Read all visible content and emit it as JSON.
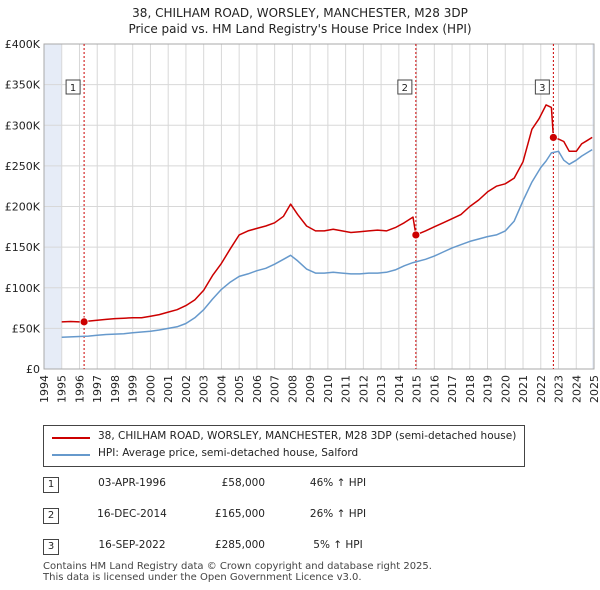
{
  "title_line1": "38, CHILHAM ROAD, WORSLEY, MANCHESTER, M28 3DP",
  "title_line2": "Price paid vs. HM Land Registry's House Price Index (HPI)",
  "legend": {
    "property": "38, CHILHAM ROAD, WORSLEY, MANCHESTER, M28 3DP (semi-detached house)",
    "hpi": "HPI: Average price, semi-detached house, Salford"
  },
  "colors": {
    "property": "#cc0000",
    "hpi": "#6699cc",
    "shade": "#e6ecf7",
    "grid": "#d8d8d8",
    "marker_line": "#cc0000"
  },
  "transactions": [
    {
      "num": "1",
      "date": "03-APR-1996",
      "price": "£58,000",
      "hpi": "46% ↑ HPI"
    },
    {
      "num": "2",
      "date": "16-DEC-2014",
      "price": "£165,000",
      "hpi": "26% ↑ HPI"
    },
    {
      "num": "3",
      "date": "16-SEP-2022",
      "price": "£285,000",
      "hpi": "5% ↑ HPI"
    }
  ],
  "footer_line1": "Contains HM Land Registry data © Crown copyright and database right 2025.",
  "footer_line2": "This data is licensed under the Open Government Licence v3.0.",
  "chart_data": {
    "type": "line",
    "title": "38, CHILHAM ROAD, WORSLEY, MANCHESTER, M28 3DP",
    "subtitle": "Price paid vs. HM Land Registry's House Price Index (HPI)",
    "xlabel": "",
    "ylabel": "",
    "xlim": [
      1994,
      2025
    ],
    "ylim": [
      0,
      400000
    ],
    "x_ticks": [
      1994,
      1995,
      1996,
      1997,
      1998,
      1999,
      2000,
      2001,
      2002,
      2003,
      2004,
      2005,
      2006,
      2007,
      2008,
      2009,
      2010,
      2011,
      2012,
      2013,
      2014,
      2015,
      2016,
      2017,
      2018,
      2019,
      2020,
      2021,
      2022,
      2023,
      2024,
      2025
    ],
    "y_ticks": [
      0,
      50000,
      100000,
      150000,
      200000,
      250000,
      300000,
      350000,
      400000
    ],
    "y_tick_labels": [
      "£0",
      "£50K",
      "£100K",
      "£150K",
      "£200K",
      "£250K",
      "£300K",
      "£350K",
      "£400K"
    ],
    "shaded_ranges": [
      [
        1994,
        1995.0
      ],
      [
        2024.9,
        2025
      ]
    ],
    "series": [
      {
        "name": "38, CHILHAM ROAD, WORSLEY, MANCHESTER, M28 3DP (semi-detached house)",
        "color": "#cc0000",
        "x": [
          1995.0,
          1995.5,
          1996.0,
          1996.26,
          1996.5,
          1997.0,
          1997.5,
          1998.0,
          1998.5,
          1999.0,
          1999.5,
          2000.0,
          2000.5,
          2001.0,
          2001.5,
          2002.0,
          2002.5,
          2003.0,
          2003.5,
          2004.0,
          2004.5,
          2005.0,
          2005.5,
          2006.0,
          2006.5,
          2007.0,
          2007.5,
          2007.9,
          2008.3,
          2008.8,
          2009.3,
          2009.8,
          2010.3,
          2010.8,
          2011.3,
          2011.8,
          2012.3,
          2012.8,
          2013.3,
          2013.8,
          2014.3,
          2014.8,
          2014.96,
          2015.5,
          2016.0,
          2016.5,
          2017.0,
          2017.5,
          2018.0,
          2018.5,
          2019.0,
          2019.5,
          2020.0,
          2020.5,
          2021.0,
          2021.5,
          2021.9,
          2022.3,
          2022.6,
          2022.71,
          2023.0,
          2023.3,
          2023.6,
          2024.0,
          2024.3,
          2024.6,
          2024.9
        ],
        "values": [
          58000,
          58500,
          58000,
          58000,
          59000,
          60000,
          61000,
          62000,
          62500,
          63000,
          63000,
          65000,
          67000,
          70000,
          73000,
          78000,
          85000,
          97000,
          115000,
          130000,
          148000,
          165000,
          170000,
          173000,
          176000,
          180000,
          188000,
          203000,
          190000,
          176000,
          170000,
          170000,
          172000,
          170000,
          168000,
          169000,
          170000,
          171000,
          170000,
          174000,
          180000,
          187000,
          165000,
          170000,
          175000,
          180000,
          185000,
          190000,
          200000,
          208000,
          218000,
          225000,
          228000,
          235000,
          255000,
          295000,
          308000,
          325000,
          322000,
          285000,
          283000,
          280000,
          268000,
          268000,
          277000,
          281000,
          285000
        ]
      },
      {
        "name": "HPI: Average price, semi-detached house, Salford",
        "color": "#6699cc",
        "x": [
          1995.0,
          1995.5,
          1996.0,
          1996.5,
          1997.0,
          1997.5,
          1998.0,
          1998.5,
          1999.0,
          1999.5,
          2000.0,
          2000.5,
          2001.0,
          2001.5,
          2002.0,
          2002.5,
          2003.0,
          2003.5,
          2004.0,
          2004.5,
          2005.0,
          2005.5,
          2006.0,
          2006.5,
          2007.0,
          2007.5,
          2007.9,
          2008.3,
          2008.8,
          2009.3,
          2009.8,
          2010.3,
          2010.8,
          2011.3,
          2011.8,
          2012.3,
          2012.8,
          2013.3,
          2013.8,
          2014.3,
          2014.8,
          2015.5,
          2016.0,
          2016.5,
          2017.0,
          2017.5,
          2018.0,
          2018.5,
          2019.0,
          2019.5,
          2020.0,
          2020.5,
          2021.0,
          2021.5,
          2022.0,
          2022.3,
          2022.6,
          2023.0,
          2023.3,
          2023.6,
          2024.0,
          2024.3,
          2024.6,
          2024.9
        ],
        "values": [
          39000,
          39500,
          40000,
          40500,
          41500,
          42500,
          43000,
          43500,
          44500,
          45500,
          46500,
          48000,
          50000,
          52000,
          56000,
          63000,
          73000,
          86000,
          98000,
          107000,
          114000,
          117000,
          121000,
          124000,
          129000,
          135000,
          140000,
          133000,
          123000,
          118000,
          118000,
          119000,
          118000,
          117000,
          117000,
          118000,
          118000,
          119000,
          122000,
          127000,
          131000,
          135000,
          139000,
          144000,
          149000,
          153000,
          157000,
          160000,
          163000,
          165000,
          170000,
          182000,
          207000,
          230000,
          248000,
          256000,
          266000,
          268000,
          257000,
          252000,
          257000,
          262000,
          266000,
          270000
        ]
      }
    ],
    "annotations": [
      {
        "label": "1",
        "x": 1996.26,
        "y": 58000,
        "date": "03-APR-1996",
        "price": 58000
      },
      {
        "label": "2",
        "x": 2014.96,
        "y": 165000,
        "date": "16-DEC-2014",
        "price": 165000
      },
      {
        "label": "3",
        "x": 2022.71,
        "y": 285000,
        "date": "16-SEP-2022",
        "price": 285000
      }
    ],
    "grid": true,
    "legend_position": "below"
  }
}
